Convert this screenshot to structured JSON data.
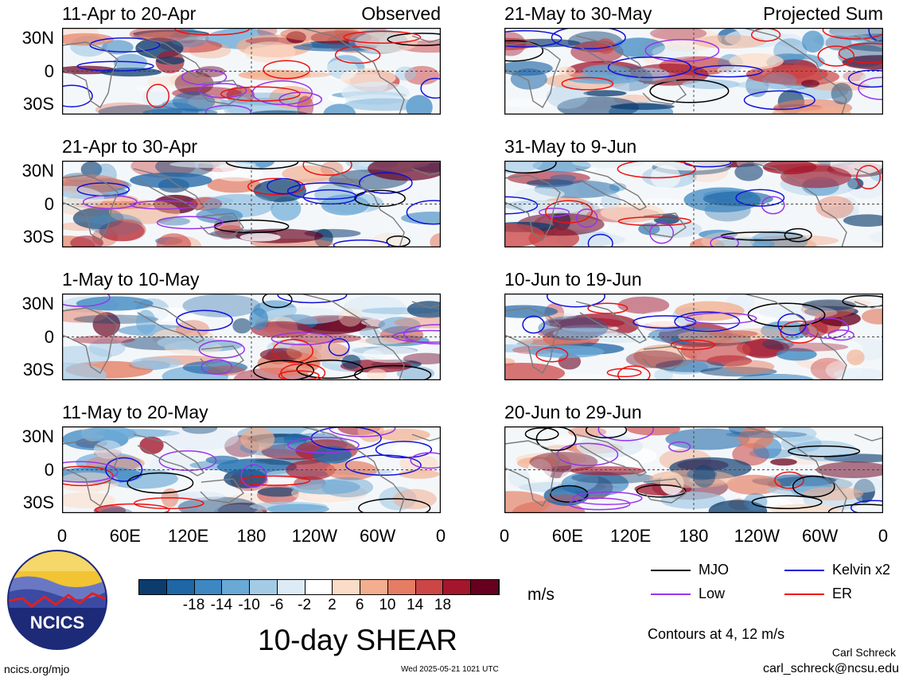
{
  "panels": [
    {
      "title": "11-Apr to 20-Apr",
      "tag": "Observed",
      "col": 0,
      "row": 0
    },
    {
      "title": "21-Apr to 30-Apr",
      "tag": "",
      "col": 0,
      "row": 1
    },
    {
      "title": "1-May to 10-May",
      "tag": "",
      "col": 0,
      "row": 2
    },
    {
      "title": "11-May to 20-May",
      "tag": "",
      "col": 0,
      "row": 3
    },
    {
      "title": "21-May to 30-May",
      "tag": "Projected Sum",
      "col": 1,
      "row": 0
    },
    {
      "title": "31-May to 9-Jun",
      "tag": "",
      "col": 1,
      "row": 1
    },
    {
      "title": "10-Jun to 19-Jun",
      "tag": "",
      "col": 1,
      "row": 2
    },
    {
      "title": "20-Jun to 29-Jun",
      "tag": "",
      "col": 1,
      "row": 3
    }
  ],
  "lat_labels": [
    "30N",
    "0",
    "30S"
  ],
  "lon_labels": [
    "0",
    "60E",
    "120E",
    "180",
    "120W",
    "60W",
    "0"
  ],
  "colorbar": {
    "colors": [
      "#0c3c6e",
      "#1f66a6",
      "#3d88c2",
      "#6aa9d6",
      "#a4cbe6",
      "#dcebf5",
      "#ffffff",
      "#fbdcc8",
      "#f2ae8e",
      "#e47d63",
      "#cc4646",
      "#a3162c",
      "#67001f"
    ],
    "labels": [
      "-18",
      "-14",
      "-10",
      "-6",
      "-2",
      "2",
      "6",
      "10",
      "14",
      "18"
    ],
    "units": "m/s"
  },
  "legend": {
    "items": [
      {
        "label": "MJO",
        "color": "#000000"
      },
      {
        "label": "Kelvin x2",
        "color": "#1010dd"
      },
      {
        "label": "Low",
        "color": "#9933ee"
      },
      {
        "label": "ER",
        "color": "#ee1111"
      }
    ],
    "contours_note": "Contours at 4, 12 m/s"
  },
  "logo": {
    "text": "NCICS"
  },
  "main_title": "10-day SHEAR",
  "footer": {
    "site": "ncics.org/mjo",
    "timestamp": "Wed 2025-05-21 1021 UTC",
    "author": "Carl Schreck",
    "email": "carl_schreck@ncsu.edu"
  }
}
